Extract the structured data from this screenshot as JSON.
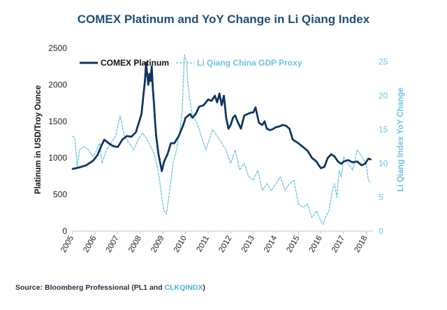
{
  "chart_data": {
    "type": "line",
    "title": "COMEX Platinum and YoY Change in Li Qiang Index",
    "ylabel_left": "Platinum in USD/Troy Ounce",
    "ylabel_right": "Li Qiang Index YoY Change",
    "ylim_left": [
      0,
      2500
    ],
    "ylim_right": [
      0,
      27
    ],
    "xlim": [
      2005.0,
      2018.3
    ],
    "x_ticks": [
      "2005",
      "2006",
      "2007",
      "2008",
      "2009",
      "2010",
      "2011",
      "2012",
      "2013",
      "2014",
      "2015",
      "2016",
      "2017",
      "2018"
    ],
    "y_ticks_left": [
      "0",
      "500",
      "1000",
      "1500",
      "2000",
      "2500"
    ],
    "y_ticks_right": [
      "0",
      "5",
      "10",
      "15",
      "20",
      "25"
    ],
    "series": [
      {
        "name": "COMEX Platinum",
        "axis": "left",
        "color": "#0f3560",
        "style": "solid",
        "x": [
          2005.0,
          2005.3,
          2005.6,
          2005.9,
          2006.1,
          2006.25,
          2006.4,
          2006.6,
          2006.8,
          2007.0,
          2007.2,
          2007.4,
          2007.6,
          2007.8,
          2007.95,
          2008.05,
          2008.15,
          2008.2,
          2008.25,
          2008.3,
          2008.35,
          2008.4,
          2008.45,
          2008.5,
          2008.55,
          2008.6,
          2008.65,
          2008.7,
          2008.8,
          2008.9,
          2008.95,
          2009.05,
          2009.2,
          2009.35,
          2009.5,
          2009.7,
          2009.9,
          2010.0,
          2010.2,
          2010.3,
          2010.45,
          2010.6,
          2010.8,
          2011.0,
          2011.15,
          2011.3,
          2011.4,
          2011.5,
          2011.6,
          2011.7,
          2011.8,
          2011.9,
          2012.0,
          2012.1,
          2012.2,
          2012.3,
          2012.45,
          2012.6,
          2012.75,
          2012.9,
          2013.0,
          2013.1,
          2013.25,
          2013.4,
          2013.5,
          2013.6,
          2013.75,
          2013.9,
          2014.0,
          2014.15,
          2014.3,
          2014.45,
          2014.6,
          2014.75,
          2014.9,
          2015.0,
          2015.2,
          2015.4,
          2015.6,
          2015.8,
          2015.9,
          2016.0,
          2016.15,
          2016.3,
          2016.45,
          2016.6,
          2016.75,
          2016.9,
          2017.0,
          2017.2,
          2017.4,
          2017.6,
          2017.8,
          2017.95,
          2018.1,
          2018.2
        ],
        "values": [
          850,
          870,
          900,
          960,
          1040,
          1150,
          1250,
          1200,
          1160,
          1150,
          1250,
          1300,
          1290,
          1350,
          1500,
          1600,
          1900,
          2050,
          2300,
          2150,
          2000,
          2150,
          2050,
          2250,
          1950,
          1750,
          1500,
          1300,
          1050,
          900,
          820,
          950,
          1050,
          1200,
          1200,
          1300,
          1450,
          1550,
          1600,
          1550,
          1600,
          1700,
          1720,
          1800,
          1780,
          1850,
          1760,
          1880,
          1720,
          1850,
          1550,
          1400,
          1450,
          1550,
          1580,
          1500,
          1400,
          1580,
          1600,
          1620,
          1620,
          1690,
          1480,
          1450,
          1500,
          1400,
          1380,
          1400,
          1420,
          1430,
          1450,
          1440,
          1400,
          1250,
          1220,
          1200,
          1150,
          1100,
          1000,
          950,
          900,
          860,
          880,
          1000,
          1050,
          1020,
          950,
          920,
          950,
          970,
          940,
          950,
          900,
          920,
          990,
          980
        ]
      },
      {
        "name": "Li Qiang China GDP Proxy",
        "axis": "right",
        "color": "#6cc3e2",
        "style": "dashed",
        "x": [
          2005.0,
          2005.1,
          2005.2,
          2005.3,
          2005.5,
          2005.7,
          2005.9,
          2006.0,
          2006.2,
          2006.3,
          2006.5,
          2006.7,
          2006.9,
          2007.1,
          2007.3,
          2007.5,
          2007.7,
          2007.9,
          2008.1,
          2008.3,
          2008.45,
          2008.6,
          2008.75,
          2008.85,
          2008.95,
          2009.05,
          2009.15,
          2009.3,
          2009.45,
          2009.6,
          2009.75,
          2009.85,
          2009.95,
          2010.05,
          2010.1,
          2010.2,
          2010.3,
          2010.5,
          2010.7,
          2010.9,
          2011.0,
          2011.2,
          2011.4,
          2011.6,
          2011.8,
          2012.0,
          2012.2,
          2012.4,
          2012.6,
          2012.8,
          2013.0,
          2013.2,
          2013.4,
          2013.6,
          2013.8,
          2014.0,
          2014.2,
          2014.4,
          2014.6,
          2014.8,
          2015.0,
          2015.2,
          2015.4,
          2015.6,
          2015.8,
          2016.0,
          2016.1,
          2016.2,
          2016.35,
          2016.5,
          2016.6,
          2016.7,
          2016.8,
          2016.9,
          2017.0,
          2017.2,
          2017.4,
          2017.6,
          2017.8,
          2018.0,
          2018.1,
          2018.2
        ],
        "values": [
          14,
          13.8,
          9.5,
          12,
          12.5,
          12,
          11,
          11.5,
          13,
          10,
          12,
          13,
          14,
          17,
          14,
          13,
          12,
          13.5,
          14.5,
          13.5,
          12.5,
          11.5,
          9.5,
          7.5,
          5,
          3,
          2.5,
          6,
          10,
          12,
          15,
          17.5,
          26,
          25,
          22,
          19,
          17,
          16,
          14,
          12,
          13,
          15,
          14,
          13,
          12,
          10,
          12,
          9,
          10,
          8,
          7.5,
          9,
          6,
          7,
          6,
          7,
          8,
          6,
          7,
          7.5,
          4,
          3.5,
          4,
          2,
          3,
          1.5,
          1,
          2,
          3,
          6,
          7,
          5,
          9,
          8,
          11,
          10,
          9,
          12,
          11,
          10,
          7.5,
          7.2
        ]
      }
    ]
  },
  "source": {
    "prefix": "Source: Bloomberg Professional (PL1 and ",
    "highlight": "CLKQINDX",
    "suffix": ")"
  },
  "colors": {
    "title": "#1d4f78",
    "platinum": "#0f3560",
    "li_qiang": "#6cc3e2",
    "axis": "#b8c4cc",
    "right_axis_text": "#6cc3e2"
  }
}
